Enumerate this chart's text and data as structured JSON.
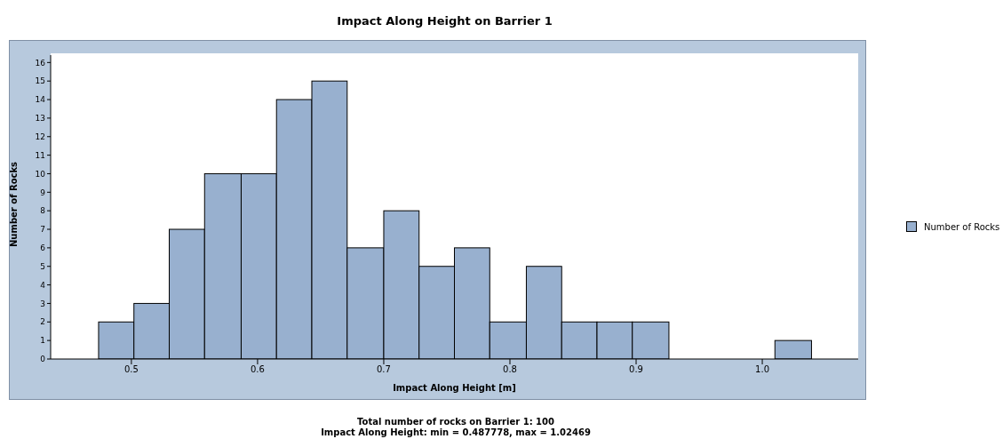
{
  "chart_data": {
    "type": "histogram",
    "title": "Impact Along Height on Barrier 1",
    "xlabel": "Impact Along Height [m]",
    "ylabel": "Number of Rocks",
    "bins": [
      0.474,
      0.502,
      0.53,
      0.558,
      0.587,
      0.615,
      0.643,
      0.671,
      0.7,
      0.728,
      0.756,
      0.784,
      0.813,
      0.841,
      0.869,
      0.897,
      0.926,
      1.01,
      1.039
    ],
    "series": [
      {
        "name": "Number of Rocks",
        "color": "#98b0cf",
        "values": [
          2,
          3,
          7,
          10,
          10,
          14,
          15,
          6,
          8,
          5,
          6,
          2,
          5,
          2,
          2,
          2,
          0,
          1
        ]
      }
    ],
    "xlim": [
      0.436,
      1.076
    ],
    "xticks": [
      0.5,
      0.6,
      0.7,
      0.8,
      0.9,
      {
        "value": 1,
        "label": "1.0"
      }
    ],
    "ylim": [
      0,
      16.4
    ],
    "yticks": [
      0,
      1,
      2,
      3,
      4,
      5,
      6,
      7,
      8,
      9,
      10,
      11,
      12,
      13,
      14,
      15,
      16
    ],
    "grid": false,
    "legend": "right",
    "annotations": [
      "Total number of rocks on Barrier 1:  100",
      "Impact Along Height:  min = 0.487778,  max = 1.02469"
    ]
  }
}
